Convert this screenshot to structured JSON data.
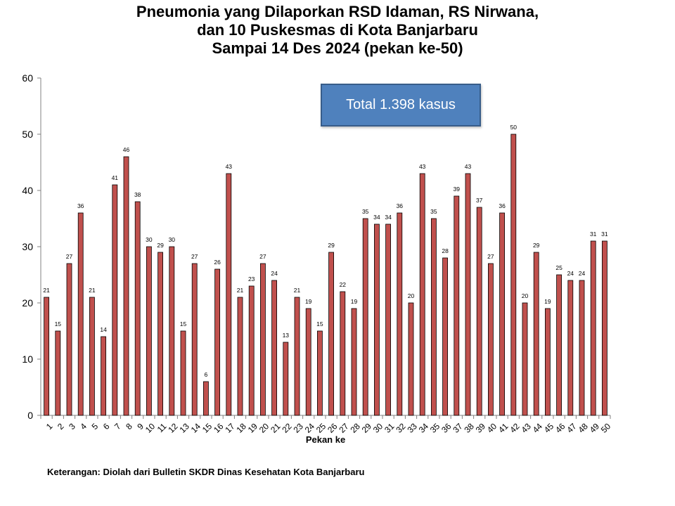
{
  "title_lines": [
    "Pneumonia yang Dilaporkan RSD Idaman, RS Nirwana,",
    "dan 10 Puskesmas di Kota Banjarbaru",
    "Sampai 14 Des 2024 (pekan ke-50)"
  ],
  "total_label": "Total 1.398 kasus",
  "footnote": "Keterangan: Diolah dari Bulletin SKDR Dinas Kesehatan Kota Banjarbaru",
  "chart_data": {
    "type": "bar",
    "title": "Pneumonia yang Dilaporkan RSD Idaman, RS Nirwana, dan 10 Puskesmas di Kota Banjarbaru Sampai 14 Des 2024 (pekan ke-50)",
    "xlabel": "Pekan ke",
    "ylabel": "",
    "ylim": [
      0,
      60
    ],
    "yticks": [
      0,
      10,
      20,
      30,
      40,
      50,
      60
    ],
    "grid": false,
    "categories": [
      "1",
      "2",
      "3",
      "4",
      "5",
      "6",
      "7",
      "8",
      "9",
      "10",
      "11",
      "12",
      "13",
      "14",
      "15",
      "16",
      "17",
      "18",
      "19",
      "20",
      "21",
      "22",
      "23",
      "24",
      "25",
      "26",
      "27",
      "28",
      "29",
      "30",
      "31",
      "32",
      "33",
      "34",
      "35",
      "36",
      "37",
      "38",
      "39",
      "40",
      "41",
      "42",
      "43",
      "44",
      "45",
      "46",
      "47",
      "48",
      "49",
      "50"
    ],
    "values": [
      21,
      15,
      27,
      36,
      21,
      14,
      41,
      46,
      38,
      30,
      29,
      30,
      15,
      27,
      6,
      26,
      43,
      21,
      23,
      27,
      24,
      13,
      21,
      19,
      15,
      29,
      22,
      19,
      35,
      34,
      34,
      36,
      20,
      43,
      35,
      28,
      39,
      43,
      37,
      27,
      36,
      50,
      20,
      29,
      19,
      25,
      24,
      24,
      31,
      31
    ],
    "bar_color": "#c0504d",
    "bar_edge_color": "#000000"
  }
}
